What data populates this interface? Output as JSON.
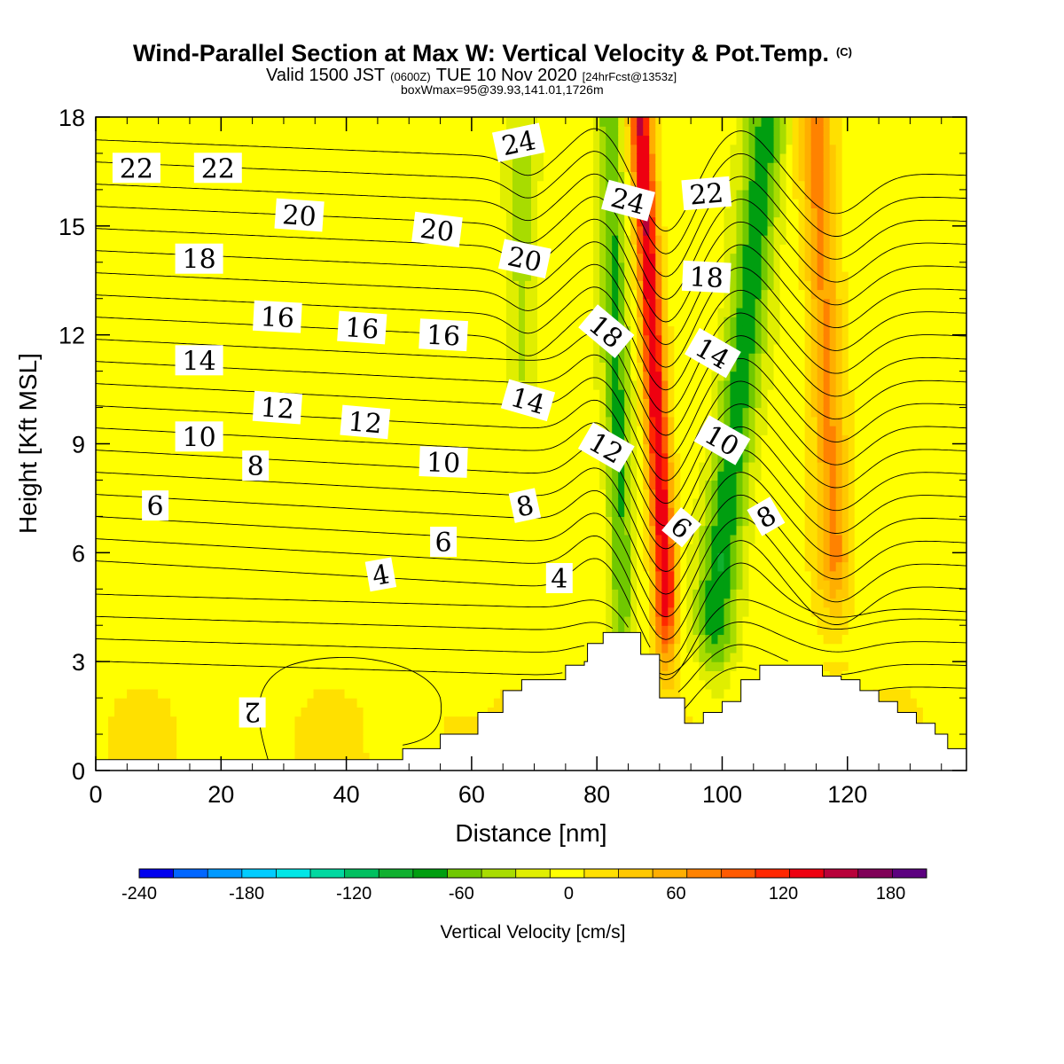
{
  "chart_data": {
    "type": "heatmap",
    "title": "Wind-Parallel Section at Max W: Vertical Velocity & Pot.Temp.",
    "title_mark": "(C)",
    "subtitle": {
      "valid_prefix": "Valid 1500 JST",
      "utc": "(0600Z)",
      "valid_date": "TUE 10 Nov 2020",
      "forecast": "[24hrFcst@1353z]",
      "box_info": "boxWmax=95@39.93,141.01,1726m"
    },
    "xlabel": "Distance [nm]",
    "ylabel": "Height [Kft MSL]",
    "xlim": [
      0,
      139
    ],
    "ylim": [
      0,
      18
    ],
    "x_ticks": [
      0,
      20,
      40,
      60,
      80,
      100,
      120
    ],
    "y_ticks": [
      0,
      3,
      6,
      9,
      12,
      15,
      18
    ],
    "colorbar": {
      "title": "Vertical Velocity [cm/s]",
      "levels": [
        -240,
        -220,
        -200,
        -180,
        -160,
        -140,
        -120,
        -100,
        -80,
        -60,
        -40,
        -20,
        0,
        20,
        40,
        60,
        80,
        100,
        120,
        140,
        160,
        180,
        200
      ],
      "tick_labels": [
        -240,
        -180,
        -120,
        -60,
        0,
        60,
        120,
        180
      ],
      "colors": [
        "#0000ee",
        "#0066ff",
        "#0099ff",
        "#00ccff",
        "#00e6e6",
        "#00d8a0",
        "#00c060",
        "#10b030",
        "#009e10",
        "#70c800",
        "#a8dc00",
        "#e0ee00",
        "#ffff00",
        "#ffe000",
        "#ffc800",
        "#ffae00",
        "#ff8200",
        "#ff5a00",
        "#ff2800",
        "#ee0010",
        "#b8003a",
        "#800058",
        "#5c0080"
      ]
    },
    "vertical_velocity": {
      "units": "cm/s",
      "features": [
        {
          "kind": "updraft",
          "x_top": 87,
          "x_bottom": 91,
          "y_bottom": 5,
          "y_top": 18,
          "half_width_nm": 1.8,
          "peak": 150
        },
        {
          "kind": "updraft",
          "x_top": 115,
          "x_bottom": 118,
          "y_bottom": 6,
          "y_top": 17.5,
          "half_width_nm": 2.6,
          "peak": 75
        },
        {
          "kind": "downdraft",
          "x_top": 82,
          "x_bottom": 84,
          "y_bottom": 5,
          "y_top": 18,
          "half_width_nm": 2.0,
          "peak": -75
        },
        {
          "kind": "downdraft",
          "x_top": 107,
          "x_bottom": 99,
          "y_bottom": 4.5,
          "y_top": 17.5,
          "half_width_nm": 3.2,
          "peak": -85
        },
        {
          "kind": "downdraft",
          "x_top": 68,
          "x_bottom": 68,
          "y_bottom": 11,
          "y_top": 17,
          "half_width_nm": 2.2,
          "peak": -40
        }
      ]
    },
    "terrain_kft": [
      [
        0,
        0.3
      ],
      [
        49,
        0.3
      ],
      [
        49,
        0.6
      ],
      [
        55,
        0.6
      ],
      [
        55,
        1.0
      ],
      [
        61,
        1.0
      ],
      [
        61,
        1.6
      ],
      [
        65,
        1.6
      ],
      [
        65,
        2.2
      ],
      [
        68,
        2.2
      ],
      [
        68,
        2.5
      ],
      [
        75,
        2.5
      ],
      [
        75,
        2.9
      ],
      [
        78,
        2.9
      ],
      [
        78,
        3.0
      ],
      [
        78.5,
        3.0
      ],
      [
        78.5,
        3.5
      ],
      [
        81,
        3.5
      ],
      [
        81,
        3.8
      ],
      [
        87,
        3.8
      ],
      [
        87,
        3.2
      ],
      [
        90,
        3.2
      ],
      [
        90,
        2.0
      ],
      [
        94,
        2.0
      ],
      [
        94,
        1.3
      ],
      [
        97,
        1.3
      ],
      [
        97,
        1.6
      ],
      [
        100,
        1.6
      ],
      [
        100,
        1.9
      ],
      [
        103,
        1.9
      ],
      [
        103,
        2.5
      ],
      [
        106,
        2.5
      ],
      [
        106,
        2.9
      ],
      [
        116,
        2.9
      ],
      [
        116,
        2.6
      ],
      [
        119,
        2.6
      ],
      [
        119,
        2.5
      ],
      [
        122,
        2.5
      ],
      [
        122,
        2.2
      ],
      [
        125,
        2.2
      ],
      [
        125,
        1.9
      ],
      [
        128,
        1.9
      ],
      [
        128,
        1.6
      ],
      [
        131,
        1.6
      ],
      [
        131,
        1.3
      ],
      [
        134,
        1.3
      ],
      [
        134,
        1.0
      ],
      [
        136,
        1.0
      ],
      [
        136,
        0.6
      ],
      [
        139,
        0.6
      ]
    ],
    "potential_temperature": {
      "units": "C",
      "contour_interval": 1,
      "contour_labels": [
        {
          "value": "22",
          "x": 6.5,
          "y": 16.6,
          "angle": 0
        },
        {
          "value": "22",
          "x": 19.5,
          "y": 16.6,
          "angle": 0
        },
        {
          "value": "20",
          "x": 32.5,
          "y": 15.3,
          "angle": 4
        },
        {
          "value": "20",
          "x": 54.5,
          "y": 14.9,
          "angle": 7
        },
        {
          "value": "20",
          "x": 68.5,
          "y": 14.1,
          "angle": 12
        },
        {
          "value": "24",
          "x": 67.5,
          "y": 17.3,
          "angle": -12
        },
        {
          "value": "24",
          "x": 85,
          "y": 15.7,
          "angle": 15
        },
        {
          "value": "22",
          "x": 97.5,
          "y": 15.9,
          "angle": -5
        },
        {
          "value": "18",
          "x": 16.5,
          "y": 14.1,
          "angle": 0
        },
        {
          "value": "18",
          "x": 81.5,
          "y": 12.1,
          "angle": 40
        },
        {
          "value": "18",
          "x": 97.5,
          "y": 13.6,
          "angle": 3
        },
        {
          "value": "16",
          "x": 29,
          "y": 12.5,
          "angle": 3
        },
        {
          "value": "16",
          "x": 42.5,
          "y": 12.2,
          "angle": 4
        },
        {
          "value": "16",
          "x": 55.5,
          "y": 12.0,
          "angle": 3
        },
        {
          "value": "14",
          "x": 16.5,
          "y": 11.3,
          "angle": 0
        },
        {
          "value": "14",
          "x": 69,
          "y": 10.2,
          "angle": 16
        },
        {
          "value": "14",
          "x": 98.5,
          "y": 11.5,
          "angle": 30
        },
        {
          "value": "12",
          "x": 29,
          "y": 10.0,
          "angle": 4
        },
        {
          "value": "12",
          "x": 43,
          "y": 9.6,
          "angle": 5
        },
        {
          "value": "12",
          "x": 81.5,
          "y": 8.9,
          "angle": 30
        },
        {
          "value": "10",
          "x": 16.5,
          "y": 9.2,
          "angle": 0
        },
        {
          "value": "10",
          "x": 55.5,
          "y": 8.5,
          "angle": 2
        },
        {
          "value": "10",
          "x": 100,
          "y": 9.1,
          "angle": 30
        },
        {
          "value": "8",
          "x": 25.5,
          "y": 8.4,
          "angle": 0
        },
        {
          "value": "8",
          "x": 68.5,
          "y": 7.3,
          "angle": -12
        },
        {
          "value": "8",
          "x": 107,
          "y": 7.0,
          "angle": -30
        },
        {
          "value": "6",
          "x": 9.5,
          "y": 7.3,
          "angle": 0
        },
        {
          "value": "6",
          "x": 55.5,
          "y": 6.3,
          "angle": 0
        },
        {
          "value": "6",
          "x": 93.5,
          "y": 6.7,
          "angle": 40
        },
        {
          "value": "4",
          "x": 45.5,
          "y": 5.4,
          "angle": -10
        },
        {
          "value": "4",
          "x": 74,
          "y": 5.3,
          "angle": 0
        },
        {
          "value": "2",
          "x": 25,
          "y": 1.6,
          "angle": 180
        }
      ]
    }
  }
}
